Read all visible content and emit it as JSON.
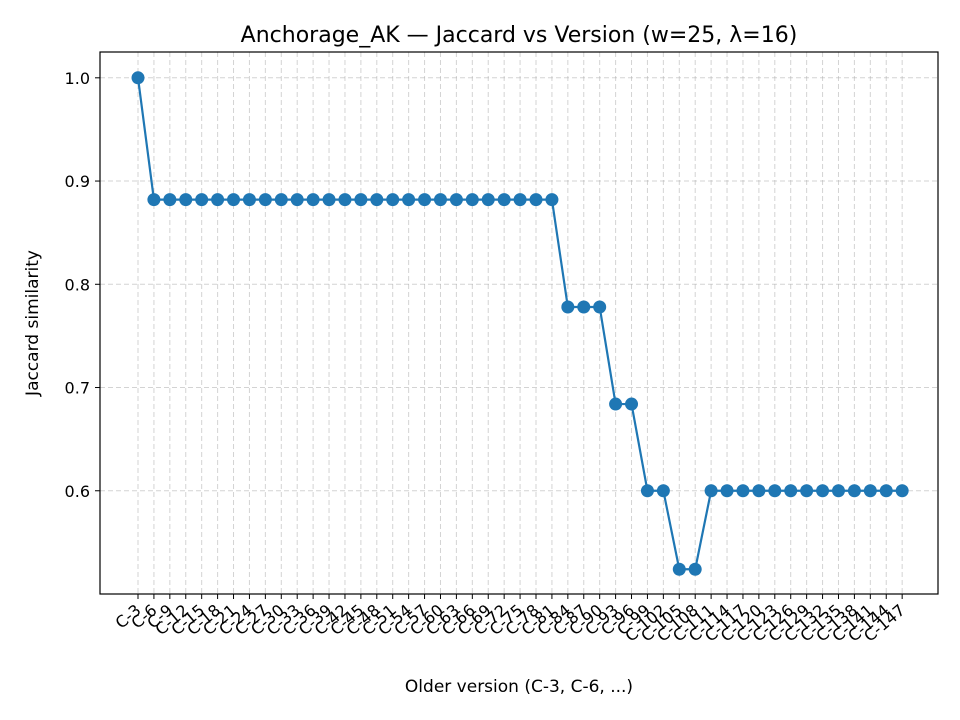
{
  "chart_data": {
    "type": "line",
    "title": "Anchorage_AK — Jaccard vs Version (w=25, λ=16)",
    "xlabel": "Older version (C-3, C-6, ...)",
    "ylabel": "Jaccard similarity",
    "ylim": [
      0.5,
      1.025
    ],
    "yticks": [
      "0.6",
      "0.7",
      "0.8",
      "0.9",
      "1.0"
    ],
    "grid": true,
    "color": "#1f77b4",
    "categories": [
      "C-3",
      "C-6",
      "C-9",
      "C-12",
      "C-15",
      "C-18",
      "C-21",
      "C-24",
      "C-27",
      "C-30",
      "C-33",
      "C-36",
      "C-39",
      "C-42",
      "C-45",
      "C-48",
      "C-51",
      "C-54",
      "C-57",
      "C-60",
      "C-63",
      "C-66",
      "C-69",
      "C-72",
      "C-75",
      "C-78",
      "C-81",
      "C-84",
      "C-87",
      "C-90",
      "C-93",
      "C-96",
      "C-99",
      "C-102",
      "C-105",
      "C-108",
      "C-111",
      "C-114",
      "C-117",
      "C-120",
      "C-123",
      "C-126",
      "C-129",
      "C-132",
      "C-135",
      "C-138",
      "C-141",
      "C-144",
      "C-147"
    ],
    "values": [
      1.0,
      0.882,
      0.882,
      0.882,
      0.882,
      0.882,
      0.882,
      0.882,
      0.882,
      0.882,
      0.882,
      0.882,
      0.882,
      0.882,
      0.882,
      0.882,
      0.882,
      0.882,
      0.882,
      0.882,
      0.882,
      0.882,
      0.882,
      0.882,
      0.882,
      0.882,
      0.882,
      0.778,
      0.778,
      0.778,
      0.684,
      0.684,
      0.6,
      0.6,
      0.524,
      0.524,
      0.6,
      0.6,
      0.6,
      0.6,
      0.6,
      0.6,
      0.6,
      0.6,
      0.6,
      0.6,
      0.6,
      0.6,
      0.6
    ]
  }
}
